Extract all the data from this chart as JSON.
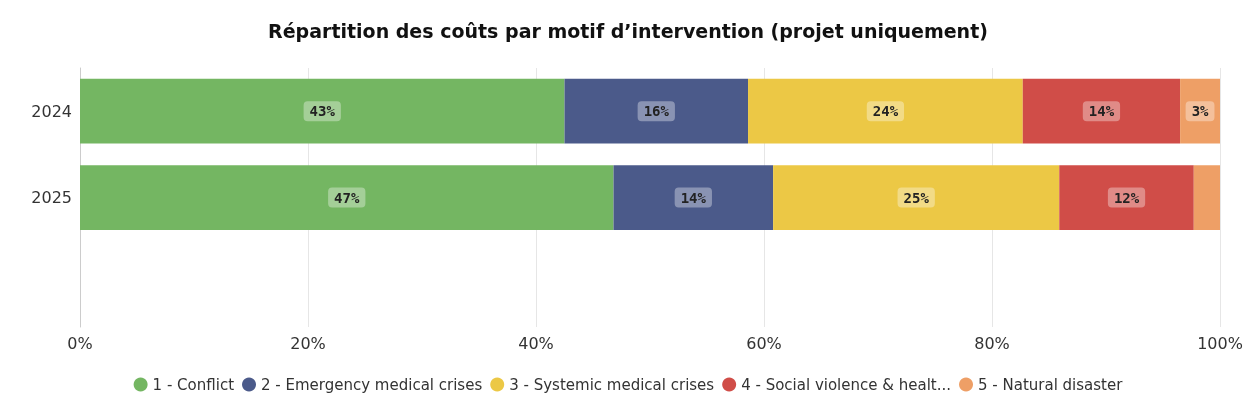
{
  "chart_data": {
    "type": "bar",
    "orientation": "horizontal",
    "stacked": true,
    "title": "Répartition des coûts par motif d’intervention (projet uniquement)",
    "categories": [
      "2024",
      "2025",
      null
    ],
    "series": [
      {
        "name": "1 - Conflict",
        "color": "#74b662",
        "values": [
          42.5,
          46.8,
          null
        ],
        "value_labels": [
          "43%",
          "47%",
          null
        ]
      },
      {
        "name": "2 - Emergency medical crises",
        "color": "#4b5a8a",
        "values": [
          16.1,
          14.0,
          null
        ],
        "value_labels": [
          "16%",
          "14%",
          null
        ]
      },
      {
        "name": "3 - Systemic medical crises",
        "color": "#ecc845",
        "values": [
          24.1,
          25.1,
          null
        ],
        "value_labels": [
          "24%",
          "25%",
          null
        ]
      },
      {
        "name": "4 - Social violence & healt...",
        "color": "#d04d48",
        "values": [
          13.8,
          11.8,
          null
        ],
        "value_labels": [
          "14%",
          "12%",
          null
        ]
      },
      {
        "name": "5 - Natural disaster",
        "color": "#ee9f66",
        "values": [
          3.5,
          2.3,
          null
        ],
        "value_labels": [
          "3%",
          null,
          null
        ]
      }
    ],
    "xlim": [
      0,
      100
    ],
    "xticks": [
      {
        "value": 0,
        "label": "0%"
      },
      {
        "value": 20,
        "label": "20%"
      },
      {
        "value": 40,
        "label": "40%"
      },
      {
        "value": 60,
        "label": "60%"
      },
      {
        "value": 80,
        "label": "80%"
      },
      {
        "value": 100,
        "label": "100%"
      }
    ],
    "grid": "x",
    "legend": "bottom"
  }
}
